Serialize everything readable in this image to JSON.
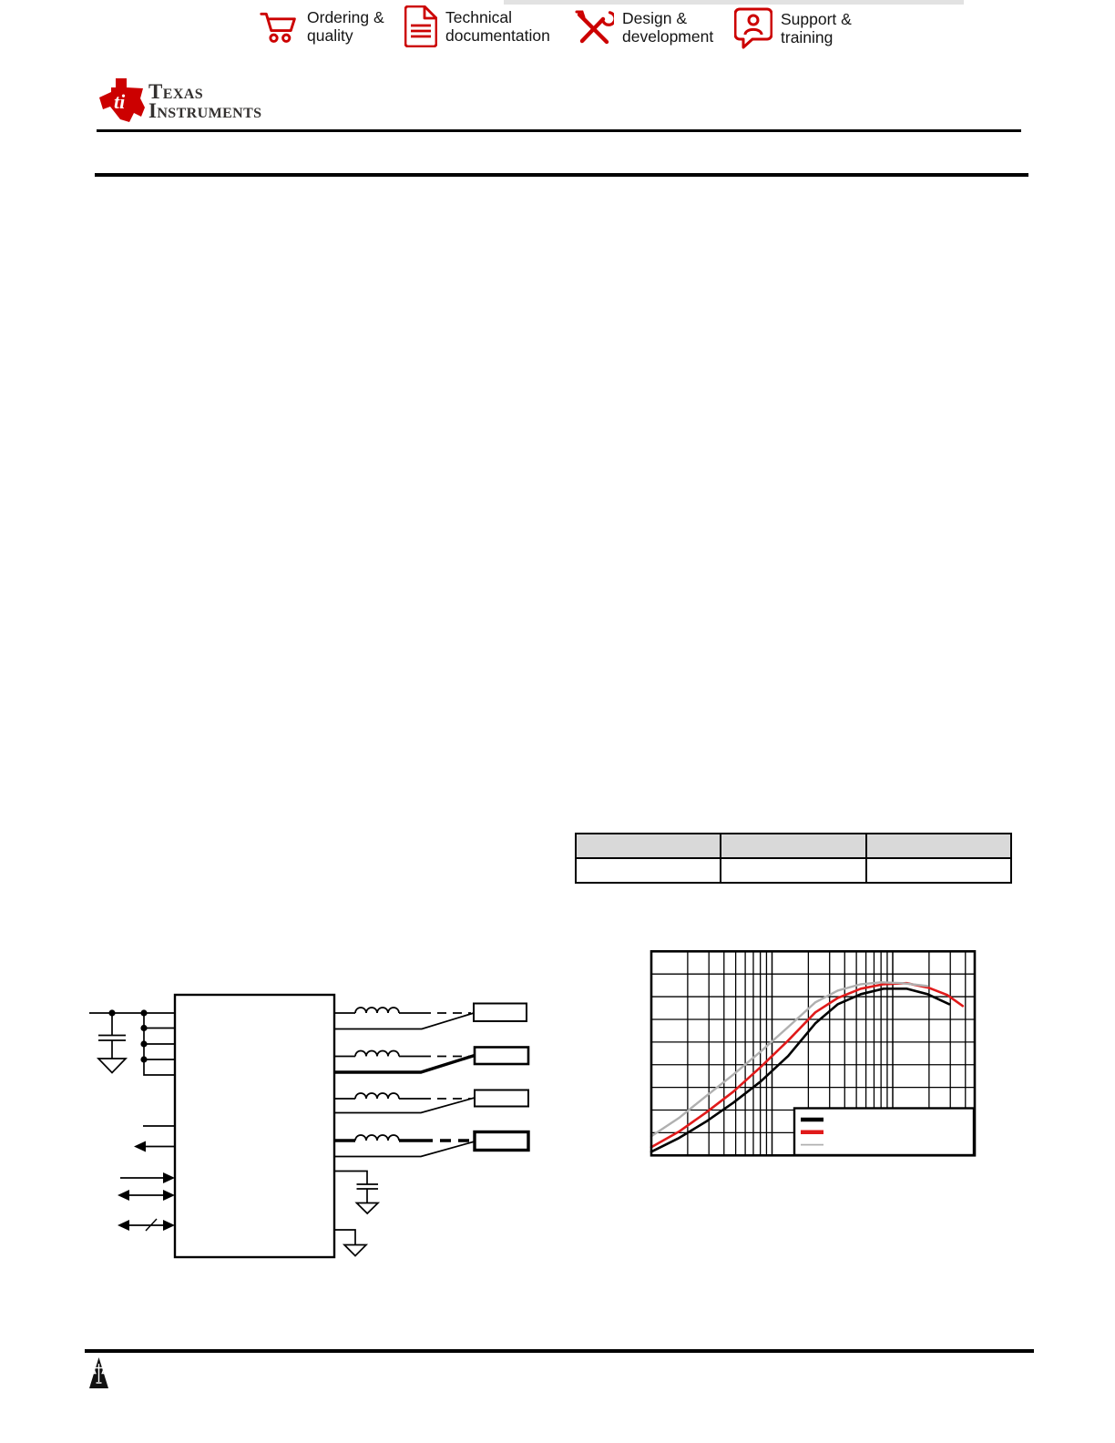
{
  "accent_color": "#cc0000",
  "header": {
    "nav_items": [
      {
        "icon": "cart-icon",
        "label_line1": "Ordering &",
        "label_line2": "quality"
      },
      {
        "icon": "document-icon",
        "label_line1": "Technical",
        "label_line2": "documentation"
      },
      {
        "icon": "wrench-screwdriver-icon",
        "label_line1": "Design &",
        "label_line2": "development"
      },
      {
        "icon": "person-chat-icon",
        "label_line1": "Support &",
        "label_line2": "training"
      }
    ]
  },
  "logo": {
    "line1": "Texas",
    "line2": "Instruments"
  },
  "table": {
    "header_bg": "#d9d9d9",
    "columns": [
      "",
      "",
      ""
    ],
    "rows": [
      [
        "",
        "",
        ""
      ]
    ]
  },
  "diagram": {
    "type": "block-schematic",
    "output_channels": 4,
    "channel_parts": [
      "inductor",
      "dashed-link",
      "load-box",
      "feedback-line"
    ],
    "bold_channels": [
      2,
      4
    ],
    "input_capacitor": true,
    "output_capacitor": true,
    "ground_symbols": 3,
    "left_control_pins": [
      "plain-line",
      "arrow-out",
      "arrow-in",
      "arrow-bidirectional",
      "arrow-bidirectional-bus"
    ]
  },
  "chart_data": {
    "type": "line",
    "title": "",
    "xlabel": "",
    "ylabel": "",
    "x_axis": {
      "scale": "log",
      "decades_shown": 2.68,
      "tick_labels_visible": false
    },
    "y_axis": {
      "divisions": 9,
      "tick_labels_visible": false
    },
    "grid": true,
    "legend": {
      "position": "bottom-right",
      "labels_visible": false,
      "entries": [
        {
          "color": "#000000",
          "weight": 4.5
        },
        {
          "color": "#e01a1a",
          "weight": 4.5
        },
        {
          "color": "#b0b0b0",
          "weight": 1.8
        }
      ]
    },
    "series": [
      {
        "name": "black-curve",
        "color": "#000000",
        "weight": 2.6,
        "points_frac": [
          [
            0.0,
            0.018
          ],
          [
            0.085,
            0.085
          ],
          [
            0.169,
            0.165
          ],
          [
            0.254,
            0.259
          ],
          [
            0.338,
            0.362
          ],
          [
            0.423,
            0.487
          ],
          [
            0.507,
            0.647
          ],
          [
            0.577,
            0.741
          ],
          [
            0.648,
            0.79
          ],
          [
            0.718,
            0.817
          ],
          [
            0.789,
            0.817
          ],
          [
            0.854,
            0.79
          ],
          [
            0.921,
            0.741
          ]
        ]
      },
      {
        "name": "red-curve",
        "color": "#e01a1a",
        "weight": 2.6,
        "points_frac": [
          [
            0.0,
            0.04
          ],
          [
            0.085,
            0.116
          ],
          [
            0.169,
            0.21
          ],
          [
            0.254,
            0.313
          ],
          [
            0.338,
            0.433
          ],
          [
            0.423,
            0.563
          ],
          [
            0.507,
            0.701
          ],
          [
            0.577,
            0.772
          ],
          [
            0.648,
            0.817
          ],
          [
            0.718,
            0.839
          ],
          [
            0.789,
            0.844
          ],
          [
            0.859,
            0.821
          ],
          [
            0.915,
            0.786
          ],
          [
            0.963,
            0.732
          ]
        ]
      },
      {
        "name": "gray-curve",
        "color": "#b0b0b0",
        "weight": 2.4,
        "points_frac": [
          [
            0.0,
            0.094
          ],
          [
            0.085,
            0.183
          ],
          [
            0.169,
            0.29
          ],
          [
            0.254,
            0.397
          ],
          [
            0.338,
            0.509
          ],
          [
            0.423,
            0.629
          ],
          [
            0.507,
            0.75
          ],
          [
            0.577,
            0.808
          ],
          [
            0.648,
            0.839
          ],
          [
            0.71,
            0.848
          ],
          [
            0.775,
            0.844
          ],
          [
            0.854,
            0.83
          ]
        ]
      }
    ]
  },
  "footer": {
    "icon": "scales-warning-icon"
  }
}
